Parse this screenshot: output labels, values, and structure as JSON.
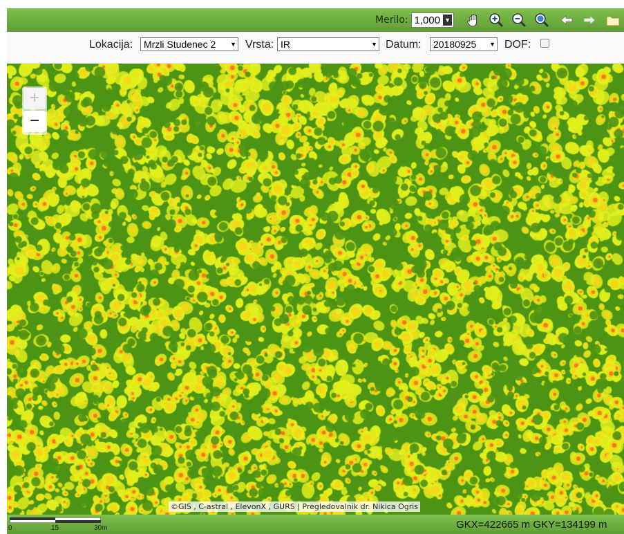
{
  "toolbar": {
    "scale_label": "Merilo:",
    "scale_value": "1,000",
    "tools": [
      "pan-hand-icon",
      "zoom-in-icon",
      "zoom-out-icon",
      "zoom-full-extent-icon",
      "back-arrow-icon",
      "forward-arrow-icon",
      "folder-icon"
    ]
  },
  "filters": {
    "location_label": "Lokacija:",
    "location_value": "Mrzli Studenec 2",
    "type_label": "Vrsta:",
    "type_value": "IR",
    "date_label": "Datum:",
    "date_value": "20180925",
    "dof_label": "DOF:",
    "dof_checked": false
  },
  "map": {
    "zoom_in": "+",
    "zoom_out": "−",
    "attribution": "©GIS , C-astral , ElevonX , GURS | Pregledovalnik dr. Nikica Ogris",
    "colors": {
      "background": "#4d9414",
      "low": "#e2ef1c",
      "mid": "#f7d419",
      "high": "#f46a1d"
    }
  },
  "statusbar": {
    "scale_ticks": [
      "0",
      "15",
      "30m"
    ],
    "coordinates": "GKX=422665 m GKY=134199 m"
  }
}
